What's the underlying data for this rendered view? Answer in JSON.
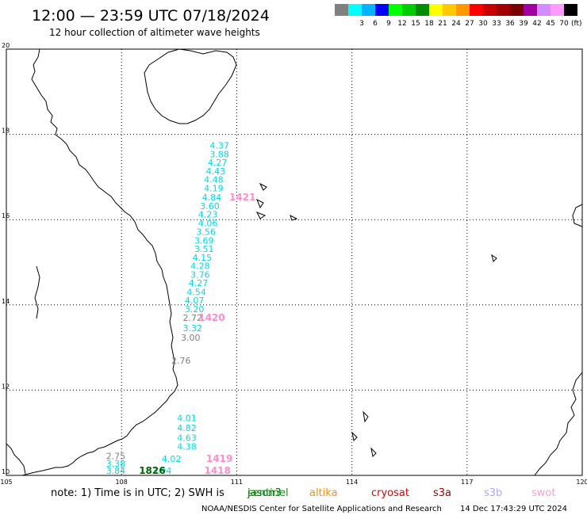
{
  "header": {
    "title": "12:00 — 23:59 UTC 07/18/2024",
    "subtitle": "12 hour collection of altimeter wave heights"
  },
  "legend": {
    "swatches": [
      {
        "label": "",
        "color": "#808080"
      },
      {
        "label": "3",
        "color": "#00ffff"
      },
      {
        "label": "6",
        "color": "#00b4ff"
      },
      {
        "label": "9",
        "color": "#0000ff"
      },
      {
        "label": "12",
        "color": "#00ff00"
      },
      {
        "label": "15",
        "color": "#00cc00"
      },
      {
        "label": "18",
        "color": "#008c00"
      },
      {
        "label": "21",
        "color": "#ffff00"
      },
      {
        "label": "24",
        "color": "#ffc800"
      },
      {
        "label": "27",
        "color": "#ff9600"
      },
      {
        "label": "30",
        "color": "#ff0000"
      },
      {
        "label": "33",
        "color": "#c80000"
      },
      {
        "label": "36",
        "color": "#a00000"
      },
      {
        "label": "39",
        "color": "#780000"
      },
      {
        "label": "42",
        "color": "#a000a0"
      },
      {
        "label": "45",
        "color": "#d28cff"
      },
      {
        "label": "70",
        "color": "#ff9bff"
      },
      {
        "label": "",
        "color": "#000000"
      }
    ],
    "unit": "(ft)"
  },
  "axes": {
    "lon_ticks": [
      "105",
      "108",
      "111",
      "114",
      "117",
      "120"
    ],
    "lat_ticks": [
      "20",
      "18",
      "16",
      "14",
      "12",
      "10"
    ]
  },
  "points": [
    {
      "lon": 110.55,
      "lat": 17.67,
      "label": "4.37",
      "color": "#00d8e8"
    },
    {
      "lon": 110.55,
      "lat": 17.46,
      "label": "3.88",
      "color": "#00d8e8"
    },
    {
      "lon": 110.5,
      "lat": 17.27,
      "label": "4.27",
      "color": "#00d8e8"
    },
    {
      "lon": 110.45,
      "lat": 17.06,
      "label": "4.43",
      "color": "#00d8e8"
    },
    {
      "lon": 110.4,
      "lat": 16.87,
      "label": "4.48",
      "color": "#00d8e8"
    },
    {
      "lon": 110.4,
      "lat": 16.66,
      "label": "4.19",
      "color": "#00d8e8"
    },
    {
      "lon": 110.35,
      "lat": 16.45,
      "label": "4.84",
      "color": "#00d8e8"
    },
    {
      "lon": 110.3,
      "lat": 16.25,
      "label": "3.60",
      "color": "#00d8e8"
    },
    {
      "lon": 110.25,
      "lat": 16.05,
      "label": "4.23",
      "color": "#00d8e8"
    },
    {
      "lon": 110.25,
      "lat": 15.85,
      "label": "4.06",
      "color": "#00d8e8"
    },
    {
      "lon": 110.2,
      "lat": 15.64,
      "label": "3.56",
      "color": "#00d8e8"
    },
    {
      "lon": 110.15,
      "lat": 15.44,
      "label": "3.69",
      "color": "#00d8e8"
    },
    {
      "lon": 110.15,
      "lat": 15.24,
      "label": "3.51",
      "color": "#00d8e8"
    },
    {
      "lon": 110.1,
      "lat": 15.04,
      "label": "4.15",
      "color": "#00d8e8"
    },
    {
      "lon": 110.05,
      "lat": 14.84,
      "label": "4.28",
      "color": "#00d8e8"
    },
    {
      "lon": 110.05,
      "lat": 14.64,
      "label": "3.76",
      "color": "#00d8e8"
    },
    {
      "lon": 110.0,
      "lat": 14.44,
      "label": "4.27",
      "color": "#00d8e8"
    },
    {
      "lon": 109.95,
      "lat": 14.23,
      "label": "4.54",
      "color": "#00d8e8"
    },
    {
      "lon": 109.9,
      "lat": 14.03,
      "label": "4.07",
      "color": "#00d8e8"
    },
    {
      "lon": 109.9,
      "lat": 13.83,
      "label": "3.20",
      "color": "#00d8e8"
    },
    {
      "lon": 109.85,
      "lat": 13.62,
      "label": "2.72",
      "color": "#808080"
    },
    {
      "lon": 109.85,
      "lat": 13.38,
      "label": "3.32",
      "color": "#00d8e8"
    },
    {
      "lon": 109.8,
      "lat": 13.16,
      "label": "3.00",
      "color": "#808080"
    },
    {
      "lon": 109.55,
      "lat": 12.62,
      "label": "2.76",
      "color": "#808080"
    },
    {
      "lon": 109.7,
      "lat": 11.27,
      "label": "4.01",
      "color": "#00d8e8"
    },
    {
      "lon": 109.7,
      "lat": 11.04,
      "label": "4.82",
      "color": "#00d8e8"
    },
    {
      "lon": 109.7,
      "lat": 10.81,
      "label": "4.63",
      "color": "#00d8e8"
    },
    {
      "lon": 109.7,
      "lat": 10.6,
      "label": "4.38",
      "color": "#00d8e8"
    },
    {
      "lon": 107.85,
      "lat": 10.38,
      "label": "2.75",
      "color": "#808080"
    },
    {
      "lon": 107.85,
      "lat": 10.2,
      "label": "3.38",
      "color": "#00d8e8"
    },
    {
      "lon": 107.85,
      "lat": 10.04,
      "label": "3.84",
      "color": "#00d8e8"
    },
    {
      "lon": 109.3,
      "lat": 10.32,
      "label": "4.02",
      "color": "#00d8e8"
    },
    {
      "lon": 109.05,
      "lat": 10.04,
      "label": "3.94",
      "color": "#00d8e8"
    }
  ],
  "track_labels": [
    {
      "lon": 111.15,
      "lat": 16.45,
      "label": "1421",
      "color": "#ff8ccc"
    },
    {
      "lon": 110.35,
      "lat": 13.62,
      "label": "1420",
      "color": "#ff8ccc"
    },
    {
      "lon": 110.55,
      "lat": 10.32,
      "label": "1419",
      "color": "#ff8ccc"
    },
    {
      "lon": 110.5,
      "lat": 10.04,
      "label": "1418",
      "color": "#ff8ccc"
    },
    {
      "lon": 108.8,
      "lat": 10.04,
      "label": "1826",
      "color": "#006400"
    }
  ],
  "footer": {
    "note_prefix": "note: 1) Time is in UTC; 2) SWH is",
    "satellites": [
      {
        "name": "jason3",
        "color": "#006400"
      },
      {
        "name": "sentinel",
        "color": "#00a000"
      },
      {
        "name": "altika",
        "color": "#ff8c00"
      },
      {
        "name": "cryosat",
        "color": "#e00000"
      },
      {
        "name": "s3a",
        "color": "#a00000"
      },
      {
        "name": "s3b",
        "color": "#b8a0ff"
      },
      {
        "name": "swot",
        "color": "#ff9bd2"
      }
    ],
    "credit": "NOAA/NESDIS Center for Satellite Applications and Research",
    "timestamp": "14 Dec 17:43:29 UTC 2024"
  }
}
